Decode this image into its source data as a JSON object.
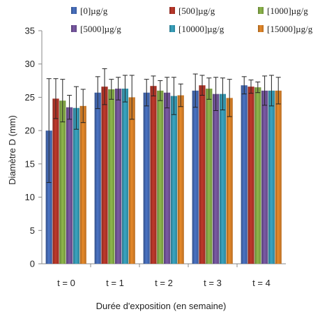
{
  "chart_data": {
    "type": "bar",
    "title": "",
    "xlabel": "Durée d'exposition  (en semaine)",
    "ylabel": "Diamètre D  (mm)",
    "ylim": [
      0,
      35
    ],
    "yticks": [
      0,
      5,
      10,
      15,
      20,
      25,
      30,
      35
    ],
    "categories": [
      "t = 0",
      "t = 1",
      "t = 2",
      "t = 3",
      "t = 4"
    ],
    "legend_position": "top",
    "grid": false,
    "error_bars": true,
    "series": [
      {
        "name": "[0]µg/g",
        "color": "#4a73c4",
        "values": [
          20.0,
          25.7,
          25.7,
          26.0,
          26.8
        ],
        "errors": [
          7.8,
          2.4,
          2.0,
          2.5,
          1.3
        ]
      },
      {
        "name": "[500]µg/g",
        "color": "#c0392b",
        "values": [
          24.8,
          26.6,
          26.7,
          26.8,
          26.6
        ],
        "errors": [
          3.0,
          2.7,
          1.5,
          1.5,
          1.0
        ]
      },
      {
        "name": "[1000]µg/g",
        "color": "#8fb84c",
        "values": [
          24.5,
          26.2,
          26.0,
          26.3,
          26.5
        ],
        "errors": [
          3.2,
          1.5,
          1.5,
          1.6,
          0.8
        ]
      },
      {
        "name": "[5000]µg/g",
        "color": "#7b5aa6",
        "values": [
          23.5,
          26.3,
          25.7,
          25.5,
          26.0
        ],
        "errors": [
          1.8,
          1.7,
          2.3,
          2.5,
          2.2
        ]
      },
      {
        "name": "[10000]µg/g",
        "color": "#3aa6c2",
        "values": [
          23.4,
          26.3,
          25.2,
          25.5,
          26.0
        ],
        "errors": [
          3.2,
          2.0,
          2.8,
          2.4,
          2.3
        ]
      },
      {
        "name": "[15000]µg/g",
        "color": "#e88a2a",
        "values": [
          23.7,
          25.0,
          25.3,
          24.9,
          26.0
        ],
        "errors": [
          2.5,
          3.3,
          1.7,
          2.8,
          2.0
        ]
      }
    ]
  }
}
